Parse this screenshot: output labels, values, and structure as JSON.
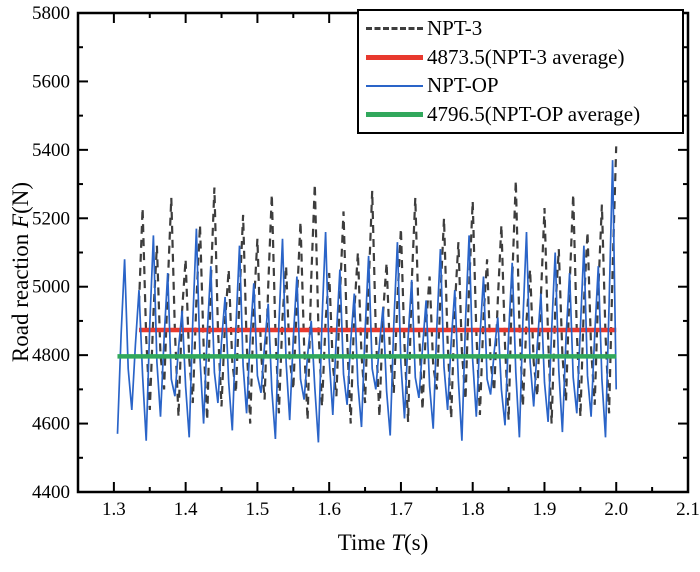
{
  "chart_data": {
    "type": "line",
    "title": "",
    "xlabel": {
      "prefix": "Time ",
      "var": "T",
      "suffix": "(s)"
    },
    "ylabel": {
      "prefix": "Road reaction ",
      "var": "F",
      "suffix": "(N)"
    },
    "x_axis": {
      "min": 1.25,
      "max": 2.1,
      "major_ticks": [
        1.3,
        1.4,
        1.5,
        1.6,
        1.7,
        1.8,
        1.9,
        2.0,
        2.1
      ],
      "tick_labels": [
        "1.3",
        "1.4",
        "1.5",
        "1.6",
        "1.7",
        "1.8",
        "1.9",
        "2.0",
        "2.1"
      ],
      "minor_step": 0.05
    },
    "y_axis": {
      "min": 4400,
      "max": 5800,
      "major_ticks": [
        4400,
        4600,
        4800,
        5000,
        5200,
        5400,
        5600,
        5800
      ],
      "tick_labels": [
        "4400",
        "4600",
        "4800",
        "5000",
        "5200",
        "5400",
        "5600",
        "5800"
      ],
      "minor_step": 100
    },
    "grid": false,
    "legend_position": "top-right",
    "series": [
      {
        "name": "NPT-3",
        "color": "#3d3d3d",
        "style": "dashed",
        "width": 2.2,
        "t0": 1.335,
        "dt": 0.005,
        "values": [
          4950,
          5230,
          4850,
          4640,
          4920,
          5120,
          4800,
          4700,
          5000,
          5260,
          4870,
          4620,
          4930,
          5080,
          4790,
          4660,
          4960,
          5180,
          4830,
          4610,
          5010,
          5290,
          4880,
          4650,
          4900,
          5050,
          4780,
          4690,
          4970,
          5210,
          4840,
          4600,
          4940,
          5140,
          4810,
          4670,
          5000,
          5270,
          4870,
          4630,
          4910,
          5060,
          4790,
          4700,
          4960,
          5190,
          4830,
          4610,
          5020,
          5300,
          4880,
          4650,
          4900,
          5040,
          4770,
          4680,
          4970,
          5220,
          4850,
          4600,
          4930,
          5100,
          4800,
          4660,
          5000,
          5280,
          4870,
          4620,
          4920,
          5070,
          4790,
          4690,
          4960,
          5170,
          4830,
          4605,
          5010,
          5260,
          4880,
          4640,
          4890,
          5030,
          4770,
          4700,
          4970,
          5200,
          4840,
          4615,
          4940,
          5130,
          4810,
          4670,
          5000,
          5250,
          4870,
          4625,
          4910,
          5080,
          4780,
          4695,
          4960,
          5180,
          4830,
          4610,
          5020,
          5310,
          4890,
          4650,
          4900,
          5050,
          4780,
          4680,
          4970,
          5230,
          4850,
          4600,
          4930,
          5110,
          4800,
          4665,
          5000,
          5270,
          4870,
          4620,
          4950,
          5160,
          4820,
          4655,
          4990,
          5240,
          4860,
          4630,
          5050,
          5410
        ]
      },
      {
        "name": "4873.5(NPT-3 average)",
        "color": "#e8392e",
        "style": "solid",
        "width": 4.5,
        "hline": true,
        "value": 4873.5,
        "t_start": 1.335,
        "t_end": 2.0
      },
      {
        "name": "NPT-OP",
        "color": "#2a64c8",
        "style": "solid",
        "width": 1.7,
        "t0": 1.305,
        "dt": 0.005,
        "values": [
          4570,
          4860,
          5080,
          4760,
          4640,
          4830,
          4990,
          4740,
          4550,
          4890,
          5150,
          4780,
          4620,
          4850,
          5040,
          4730,
          4680,
          4820,
          4930,
          4710,
          4560,
          4900,
          5170,
          4790,
          4600,
          4860,
          5060,
          4750,
          4660,
          4840,
          4970,
          4720,
          4580,
          4880,
          5120,
          4770,
          4630,
          4850,
          5010,
          4740,
          4690,
          4830,
          4950,
          4700,
          4555,
          4890,
          5140,
          4780,
          4610,
          4850,
          5030,
          4730,
          4670,
          4800,
          4900,
          4705,
          4545,
          4900,
          5160,
          4790,
          4625,
          4860,
          5050,
          4745,
          4655,
          4840,
          4980,
          4715,
          4590,
          4870,
          5090,
          4760,
          4700,
          4830,
          4940,
          4695,
          4565,
          4890,
          5130,
          4775,
          4615,
          4850,
          5020,
          4735,
          4675,
          4820,
          4960,
          4710,
          4585,
          4880,
          5110,
          4765,
          4640,
          4840,
          4990,
          4725,
          4550,
          4900,
          5150,
          4785,
          4620,
          4850,
          5030,
          4730,
          4685,
          4810,
          4910,
          4700,
          4595,
          4860,
          5070,
          4750,
          4560,
          4900,
          5160,
          4780,
          4650,
          4830,
          4980,
          4720,
          4605,
          4870,
          5100,
          4755,
          4575,
          4850,
          5040,
          4735,
          4630,
          4880,
          5120,
          4740,
          4620,
          4860,
          5060,
          4730,
          4560,
          4950,
          5370,
          4700
        ]
      },
      {
        "name": "4796.5(NPT-OP average)",
        "color": "#31a85c",
        "style": "solid",
        "width": 4.5,
        "hline": true,
        "value": 4796.5,
        "t_start": 1.305,
        "t_end": 2.0
      }
    ]
  }
}
